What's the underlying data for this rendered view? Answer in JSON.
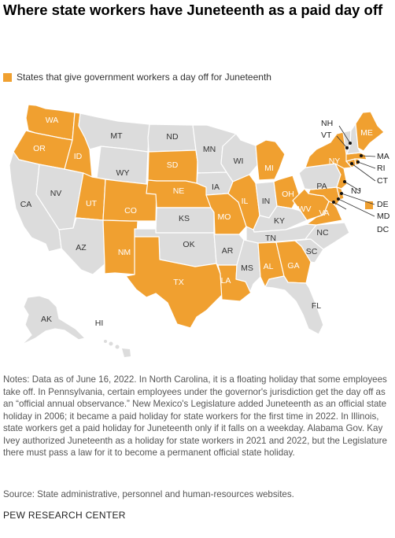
{
  "title": "Where state workers have Juneteenth as a paid day off",
  "legend": {
    "label": "States that give government workers a day off for Juneteenth",
    "color": "#f0a030"
  },
  "colors": {
    "paid": "#f0a030",
    "not_paid": "#dcdcdc",
    "border": "#ffffff"
  },
  "paid_states": [
    "WA",
    "OR",
    "ID",
    "UT",
    "CO",
    "NM",
    "TX",
    "SD",
    "NE",
    "MO",
    "LA",
    "IL",
    "MI",
    "OH",
    "WV",
    "VA",
    "MD",
    "DE",
    "NJ",
    "NY",
    "CT",
    "RI",
    "MA",
    "ME",
    "AL",
    "GA",
    "DC"
  ],
  "state_labels": [
    "WA",
    "OR",
    "CA",
    "NV",
    "ID",
    "MT",
    "WY",
    "UT",
    "AZ",
    "CO",
    "NM",
    "ND",
    "SD",
    "NE",
    "KS",
    "OK",
    "TX",
    "MN",
    "IA",
    "MO",
    "AR",
    "LA",
    "WI",
    "IL",
    "MI",
    "IN",
    "OH",
    "KY",
    "TN",
    "MS",
    "AL",
    "GA",
    "FL",
    "SC",
    "NC",
    "VA",
    "WV",
    "PA",
    "NY",
    "ME",
    "AK",
    "HI"
  ],
  "callout_labels": [
    "NH",
    "VT",
    "MA",
    "RI",
    "CT",
    "NJ",
    "DE",
    "MD",
    "DC"
  ],
  "notes": "Notes: Data as of June 16, 2022. In North Carolina, it is a floating holiday that some employees take off. In Pennsylvania, certain employees under the governor's jurisdiction get the day off as an “official annual observance.” New Mexico's Legislature added Juneteenth as an official state holiday in 2006; it became a paid holiday for state workers for the first time in 2022. In Illinois, state workers get a paid holiday for Juneteenth only if it falls on a weekday. Alabama Gov. Kay Ivey authorized Juneteenth as a holiday for state workers in 2021 and 2022, but the Legislature there must pass a law for it to become a permanent official state holiday.",
  "source": "Source: State administrative, personnel and human-resources websites.",
  "organization": "PEW RESEARCH CENTER"
}
